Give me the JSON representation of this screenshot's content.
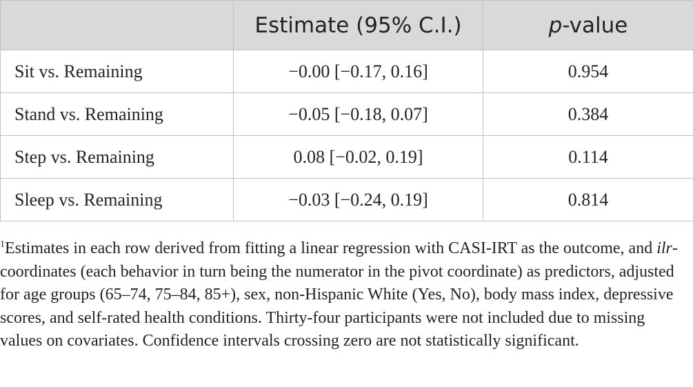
{
  "table": {
    "headers": {
      "label": "",
      "estimate": "Estimate (95% C.I.)",
      "pvalue_italic": "p",
      "pvalue_rest": "-value"
    },
    "rows": [
      {
        "label": "Sit vs. Remaining",
        "estimate": "−0.00 [−0.17, 0.16]",
        "pvalue": "0.954"
      },
      {
        "label": "Stand vs. Remaining",
        "estimate": "−0.05 [−0.18, 0.07]",
        "pvalue": "0.384"
      },
      {
        "label": "Step vs. Remaining",
        "estimate": "0.08 [−0.02, 0.19]",
        "pvalue": "0.114"
      },
      {
        "label": "Sleep vs. Remaining",
        "estimate": "−0.03 [−0.24, 0.19]",
        "pvalue": "0.814"
      }
    ]
  },
  "footnote": {
    "marker": "1",
    "part1": "Estimates in each row derived from fitting a linear regression with CASI-IRT as the outcome, and ",
    "italic": "ilr",
    "part2": "-coordinates (each behavior in turn being the numerator in the pivot coordinate) as predictors, adjusted for age groups (65–74, 75–84, 85+), sex, non-Hispanic White (Yes, No), body mass index, depressive scores, and self-rated health conditions. Thirty-four participants were not included due to missing values on covariates. Confidence intervals crossing zero are not statistically significant."
  }
}
